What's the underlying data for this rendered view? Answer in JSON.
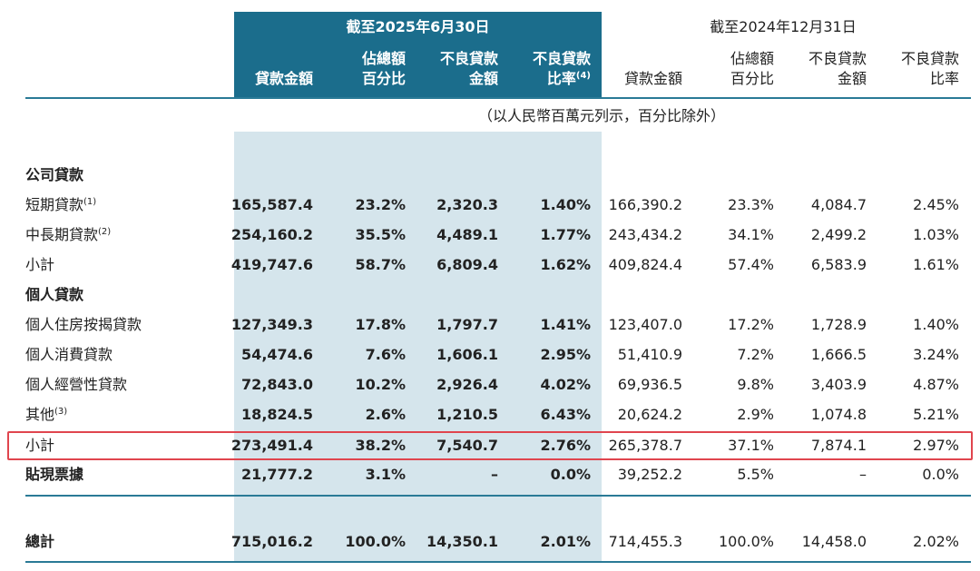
{
  "header": {
    "period_current": "截至2025年6月30日",
    "period_prior": "截至2024年12月31日",
    "columns_current": [
      {
        "lines": [
          "貸款金額"
        ]
      },
      {
        "lines": [
          "佔總額",
          "百分比"
        ]
      },
      {
        "lines": [
          "不良貸款",
          "金額"
        ]
      },
      {
        "lines": [
          "不良貸款",
          "比率"
        ],
        "note": "(4)"
      }
    ],
    "columns_prior": [
      {
        "lines": [
          "貸款金額"
        ]
      },
      {
        "lines": [
          "佔總額",
          "百分比"
        ]
      },
      {
        "lines": [
          "不良貸款",
          "金額"
        ]
      },
      {
        "lines": [
          "不良貸款",
          "比率"
        ]
      }
    ]
  },
  "unit_note": "（以人民幣百萬元列示，百分比除外）",
  "table": {
    "rows": [
      {
        "label": "公司貸款",
        "bold": true
      },
      {
        "label": "短期貸款",
        "note": "(1)",
        "values": [
          "165,587.4",
          "23.2%",
          "2,320.3",
          "1.40%",
          "166,390.2",
          "23.3%",
          "4,084.7",
          "2.45%"
        ]
      },
      {
        "label": "中長期貸款",
        "note": "(2)",
        "values": [
          "254,160.2",
          "35.5%",
          "4,489.1",
          "1.77%",
          "243,434.2",
          "34.1%",
          "2,499.2",
          "1.03%"
        ]
      },
      {
        "label": "小計",
        "values": [
          "419,747.6",
          "58.7%",
          "6,809.4",
          "1.62%",
          "409,824.4",
          "57.4%",
          "6,583.9",
          "1.61%"
        ]
      },
      {
        "label": "個人貸款",
        "bold": true
      },
      {
        "label": "個人住房按揭貸款",
        "values": [
          "127,349.3",
          "17.8%",
          "1,797.7",
          "1.41%",
          "123,407.0",
          "17.2%",
          "1,728.9",
          "1.40%"
        ]
      },
      {
        "label": "個人消費貸款",
        "values": [
          "54,474.6",
          "7.6%",
          "1,606.1",
          "2.95%",
          "51,410.9",
          "7.2%",
          "1,666.5",
          "3.24%"
        ]
      },
      {
        "label": "個人經營性貸款",
        "values": [
          "72,843.0",
          "10.2%",
          "2,926.4",
          "4.02%",
          "69,936.5",
          "9.8%",
          "3,403.9",
          "4.87%"
        ]
      },
      {
        "label": "其他",
        "note": "(3)",
        "values": [
          "18,824.5",
          "2.6%",
          "1,210.5",
          "6.43%",
          "20,624.2",
          "2.9%",
          "1,074.8",
          "5.21%"
        ]
      },
      {
        "label": "小計",
        "highlighted": true,
        "values": [
          "273,491.4",
          "38.2%",
          "7,540.7",
          "2.76%",
          "265,378.7",
          "37.1%",
          "7,874.1",
          "2.97%"
        ]
      },
      {
        "label": "貼現票據",
        "bold": true,
        "values": [
          "21,777.2",
          "3.1%",
          "–",
          "0.0%",
          "39,252.2",
          "5.5%",
          "–",
          "0.0%"
        ]
      },
      {
        "label": "總計",
        "bold": true,
        "values": [
          "715,016.2",
          "100.0%",
          "14,350.1",
          "2.01%",
          "714,455.3",
          "100.0%",
          "14,458.0",
          "2.02%"
        ]
      }
    ]
  }
}
